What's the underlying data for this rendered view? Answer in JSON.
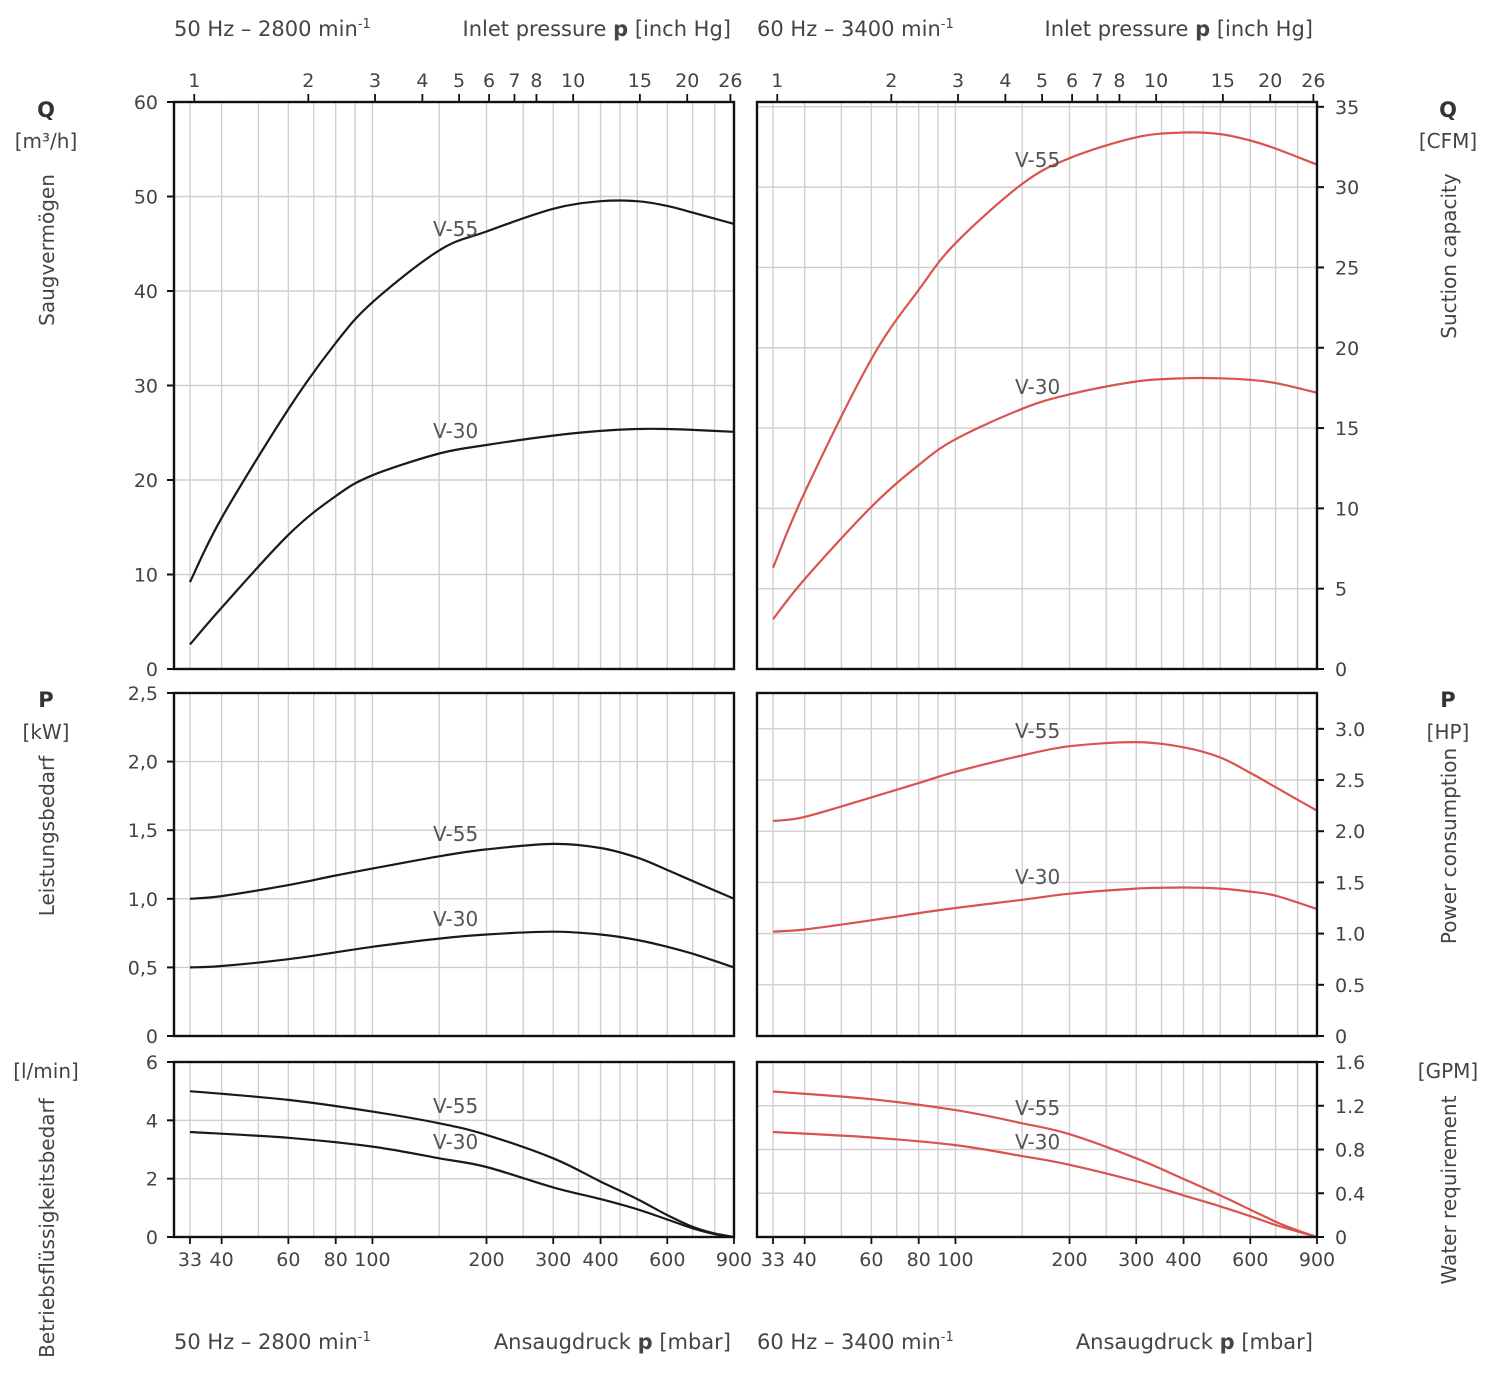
{
  "colors": {
    "black_series": "#1a1a1a",
    "red_series": "#d9534f",
    "grid": "#cfcfcf",
    "frame": "#111111"
  },
  "headers": {
    "top_left_freq": "50 Hz – 2800 min",
    "top_right_freq": "60 Hz – 3400 min",
    "freq_sup": "-1",
    "top_inlet_prefix": "Inlet pressure ",
    "top_inlet_bold": "p",
    "top_inlet_suffix": " [inch Hg]",
    "bottom_left_freq": "50 Hz – 2800 min",
    "bottom_right_freq": "60 Hz – 3400 min",
    "bottom_ansaug_prefix": "Ansaugdruck ",
    "bottom_ansaug_bold": "p",
    "bottom_ansaug_suffix": " [mbar]"
  },
  "side_labels": {
    "left_q_symbol": "Q",
    "left_q_unit": "[m³/h]",
    "left_q_title": "Saugvermögen",
    "left_p_symbol": "P",
    "left_p_unit": "[kW]",
    "left_p_title": "Leistungsbedarf",
    "left_w_unit": "[l/min]",
    "left_w_title": "Betriebsflüssigkeitsbedarf",
    "right_q_symbol": "Q",
    "right_q_unit": "[CFM]",
    "right_q_title": "Suction capacity",
    "right_p_symbol": "P",
    "right_p_unit": "[HP]",
    "right_p_title": "Power consumption",
    "right_w_unit": "[GPM]",
    "right_w_title": "Water requirement"
  },
  "axes": {
    "x_mbar": {
      "scale": "log",
      "range": [
        33,
        900
      ],
      "ticks": [
        33,
        40,
        60,
        80,
        100,
        200,
        300,
        400,
        600,
        900
      ],
      "tick_labels": [
        "33",
        "40",
        "60",
        "80",
        "100",
        "200",
        "300",
        "400",
        "600",
        "900"
      ],
      "minor_grid": [
        50,
        70,
        90,
        150,
        250,
        350,
        450,
        500,
        700,
        800
      ]
    },
    "x_inhg": {
      "scale": "log",
      "ticks": [
        1,
        2,
        3,
        4,
        5,
        6,
        7,
        8,
        10,
        15,
        20,
        26
      ],
      "tick_labels": [
        "1",
        "2",
        "3",
        "4",
        "5",
        "6",
        "7",
        "8",
        "10",
        "15",
        "20",
        "26"
      ]
    },
    "left_q": {
      "range": [
        0,
        60
      ],
      "ticks": [
        0,
        10,
        20,
        30,
        40,
        50,
        60
      ],
      "tick_labels": [
        "0",
        "10",
        "20",
        "30",
        "40",
        "50",
        "60"
      ]
    },
    "left_p": {
      "range": [
        0,
        2.5
      ],
      "ticks": [
        0,
        0.5,
        1.0,
        1.5,
        2.0,
        2.5
      ],
      "tick_labels": [
        "0",
        "0,5",
        "1,0",
        "1,5",
        "2,0",
        "2,5"
      ]
    },
    "left_w": {
      "range": [
        0,
        6
      ],
      "ticks": [
        0,
        2,
        4,
        6
      ],
      "tick_labels": [
        "0",
        "2",
        "4",
        "6"
      ]
    },
    "right_q": {
      "range": [
        0,
        35.3
      ],
      "ticks": [
        0,
        5,
        10,
        15,
        20,
        25,
        30,
        35
      ],
      "tick_labels": [
        "0",
        "5",
        "10",
        "15",
        "20",
        "25",
        "30",
        "35"
      ]
    },
    "right_p": {
      "range": [
        0,
        3.35
      ],
      "ticks": [
        0,
        0.5,
        1.0,
        1.5,
        2.0,
        2.5,
        3.0
      ],
      "tick_labels": [
        "0",
        "0.5",
        "1.0",
        "1.5",
        "2.0",
        "2.5",
        "3.0"
      ]
    },
    "right_w": {
      "range": [
        0,
        1.6
      ],
      "ticks": [
        0,
        0.4,
        0.8,
        1.2,
        1.6
      ],
      "tick_labels": [
        "0",
        "0.4",
        "0.8",
        "1.2",
        "1.6"
      ]
    }
  },
  "chart_data": [
    {
      "type": "line",
      "id": "q50",
      "x_scale": "log",
      "xlim": [
        33,
        900
      ],
      "ylim": [
        0,
        60
      ],
      "ylabel": "Saugvermögen",
      "x_top_label": "Inlet pressure p [inch Hg]",
      "series": [
        {
          "name": "V-55",
          "color": "#1a1a1a",
          "x": [
            33,
            40,
            60,
            80,
            100,
            150,
            200,
            300,
            400,
            500,
            600,
            700,
            900
          ],
          "y": [
            9.2,
            16,
            27.5,
            34.5,
            38.8,
            44.3,
            46.3,
            48.7,
            49.5,
            49.5,
            49.0,
            48.3,
            47.1
          ]
        },
        {
          "name": "V-30",
          "color": "#1a1a1a",
          "x": [
            33,
            40,
            60,
            80,
            100,
            150,
            200,
            300,
            400,
            500,
            600,
            700,
            900
          ],
          "y": [
            2.6,
            6.5,
            14.2,
            18.3,
            20.5,
            22.8,
            23.7,
            24.7,
            25.2,
            25.4,
            25.4,
            25.3,
            25.1
          ]
        }
      ]
    },
    {
      "type": "line",
      "id": "q60",
      "x_scale": "log",
      "xlim": [
        33,
        900
      ],
      "ylim": [
        0,
        35.3
      ],
      "ylabel": "Suction capacity",
      "x_top_label": "Inlet pressure p [inch Hg]",
      "series": [
        {
          "name": "V-55",
          "color": "#d9534f",
          "x": [
            33,
            40,
            60,
            80,
            100,
            150,
            200,
            300,
            400,
            500,
            600,
            700,
            900
          ],
          "y": [
            6.3,
            11,
            19.3,
            23.6,
            26.5,
            30.2,
            31.8,
            33.1,
            33.4,
            33.3,
            32.9,
            32.4,
            31.4
          ]
        },
        {
          "name": "V-30",
          "color": "#d9534f",
          "x": [
            33,
            40,
            60,
            80,
            100,
            150,
            200,
            300,
            400,
            500,
            600,
            700,
            900
          ],
          "y": [
            3.1,
            5.6,
            10.1,
            12.7,
            14.3,
            16.2,
            17.1,
            17.9,
            18.1,
            18.1,
            18.0,
            17.8,
            17.2
          ]
        }
      ]
    },
    {
      "type": "line",
      "id": "p50",
      "x_scale": "log",
      "xlim": [
        33,
        900
      ],
      "ylim": [
        0,
        2.5
      ],
      "ylabel": "Leistungsbedarf",
      "series": [
        {
          "name": "V-55",
          "color": "#1a1a1a",
          "x": [
            33,
            40,
            60,
            80,
            100,
            150,
            200,
            300,
            400,
            500,
            600,
            700,
            900
          ],
          "y": [
            1.0,
            1.02,
            1.1,
            1.17,
            1.22,
            1.31,
            1.36,
            1.4,
            1.37,
            1.3,
            1.21,
            1.13,
            1.0
          ]
        },
        {
          "name": "V-30",
          "color": "#1a1a1a",
          "x": [
            33,
            40,
            60,
            80,
            100,
            150,
            200,
            300,
            400,
            500,
            600,
            700,
            900
          ],
          "y": [
            0.5,
            0.51,
            0.56,
            0.61,
            0.65,
            0.71,
            0.74,
            0.76,
            0.74,
            0.7,
            0.65,
            0.6,
            0.5
          ]
        }
      ]
    },
    {
      "type": "line",
      "id": "p60",
      "x_scale": "log",
      "xlim": [
        33,
        900
      ],
      "ylim": [
        0,
        3.35
      ],
      "ylabel": "Power consumption",
      "series": [
        {
          "name": "V-55",
          "color": "#d9534f",
          "x": [
            33,
            40,
            60,
            80,
            100,
            150,
            200,
            300,
            400,
            500,
            600,
            700,
            900
          ],
          "y": [
            2.1,
            2.14,
            2.33,
            2.47,
            2.58,
            2.74,
            2.83,
            2.87,
            2.82,
            2.72,
            2.57,
            2.43,
            2.2
          ]
        },
        {
          "name": "V-30",
          "color": "#d9534f",
          "x": [
            33,
            40,
            60,
            80,
            100,
            150,
            200,
            300,
            400,
            500,
            600,
            700,
            900
          ],
          "y": [
            1.02,
            1.04,
            1.13,
            1.2,
            1.25,
            1.33,
            1.39,
            1.44,
            1.45,
            1.44,
            1.41,
            1.37,
            1.24
          ]
        }
      ]
    },
    {
      "type": "line",
      "id": "w50",
      "x_scale": "log",
      "xlim": [
        33,
        900
      ],
      "ylim": [
        0,
        6
      ],
      "ylabel": "Betriebsflüssigkeitsbedarf",
      "xlabel": "Ansaugdruck p [mbar]",
      "series": [
        {
          "name": "V-55",
          "color": "#1a1a1a",
          "x": [
            33,
            60,
            100,
            150,
            200,
            300,
            400,
            500,
            600,
            700,
            800,
            900
          ],
          "y": [
            5.0,
            4.7,
            4.3,
            3.9,
            3.5,
            2.7,
            1.9,
            1.3,
            0.75,
            0.35,
            0.12,
            0
          ]
        },
        {
          "name": "V-30",
          "color": "#1a1a1a",
          "x": [
            33,
            60,
            100,
            150,
            200,
            300,
            400,
            500,
            600,
            700,
            800,
            900
          ],
          "y": [
            3.6,
            3.4,
            3.1,
            2.7,
            2.4,
            1.7,
            1.3,
            0.95,
            0.6,
            0.3,
            0.1,
            0
          ]
        }
      ]
    },
    {
      "type": "line",
      "id": "w60",
      "x_scale": "log",
      "xlim": [
        33,
        900
      ],
      "ylim": [
        0,
        1.6
      ],
      "ylabel": "Water requirement",
      "xlabel": "Ansaugdruck p [mbar]",
      "series": [
        {
          "name": "V-55",
          "color": "#d9534f",
          "x": [
            33,
            60,
            100,
            150,
            200,
            300,
            400,
            500,
            600,
            700,
            800,
            900
          ],
          "y": [
            1.33,
            1.26,
            1.16,
            1.04,
            0.94,
            0.72,
            0.53,
            0.38,
            0.25,
            0.14,
            0.06,
            0
          ]
        },
        {
          "name": "V-30",
          "color": "#d9534f",
          "x": [
            33,
            60,
            100,
            150,
            200,
            300,
            400,
            500,
            600,
            700,
            800,
            900
          ],
          "y": [
            0.96,
            0.91,
            0.84,
            0.74,
            0.66,
            0.51,
            0.38,
            0.28,
            0.19,
            0.11,
            0.05,
            0
          ]
        }
      ]
    }
  ]
}
